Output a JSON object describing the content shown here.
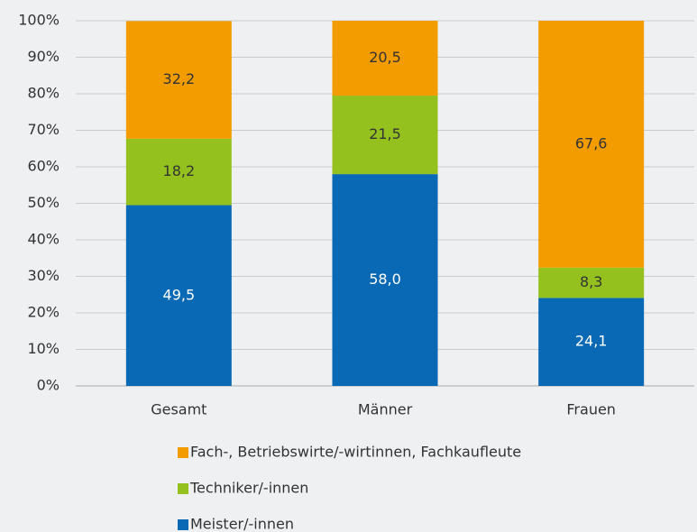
{
  "chart_data": {
    "type": "stacked_bar",
    "categories": [
      "Gesamt",
      "Männer",
      "Frauen"
    ],
    "series": [
      {
        "name": "Meister/-innen",
        "color": "#0a69b4",
        "values": [
          49.5,
          58.0,
          24.1
        ],
        "value_labels": [
          "49,5",
          "58,0",
          "24,1"
        ]
      },
      {
        "name": "Techniker/-innen",
        "color": "#95c11f",
        "values": [
          18.2,
          21.5,
          8.3
        ],
        "value_labels": [
          "18,2",
          "21,5",
          "8,3"
        ]
      },
      {
        "name": "Fach-, Betriebswirte/-wirtinnen, Fachkaufleute",
        "color": "#f39c00",
        "values": [
          32.2,
          20.5,
          67.6
        ],
        "value_labels": [
          "32,2",
          "20,5",
          "67,6"
        ]
      }
    ],
    "ylim": [
      0,
      100
    ],
    "yticks": [
      {
        "value": 0,
        "label": "0%"
      },
      {
        "value": 10,
        "label": "10%"
      },
      {
        "value": 20,
        "label": "20%"
      },
      {
        "value": 30,
        "label": "30%"
      },
      {
        "value": 40,
        "label": "40%"
      },
      {
        "value": 50,
        "label": "50%"
      },
      {
        "value": 60,
        "label": "60%"
      },
      {
        "value": 70,
        "label": "70%"
      },
      {
        "value": 80,
        "label": "80%"
      },
      {
        "value": 90,
        "label": "90%"
      },
      {
        "value": 100,
        "label": "100%"
      }
    ],
    "grid": true
  }
}
